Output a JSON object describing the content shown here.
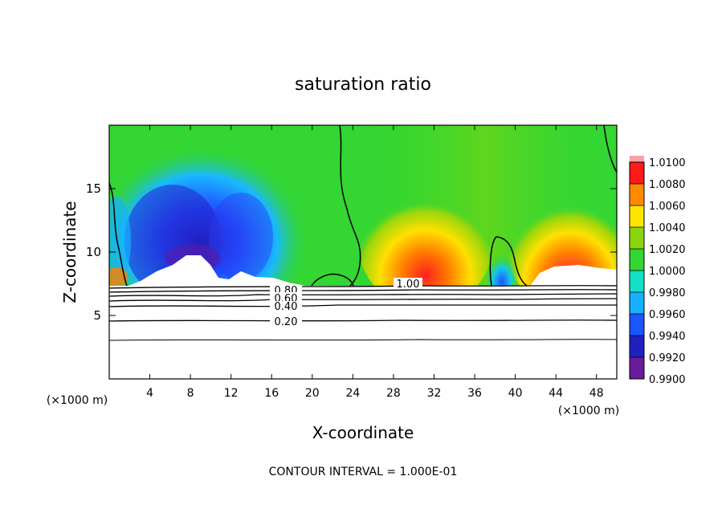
{
  "chart_data": {
    "type": "heatmap",
    "title": "saturation ratio",
    "xlabel": "X-coordinate",
    "ylabel": "Z-coordinate",
    "x_unit": "(×1000 m)",
    "x_unit_right": "(×1000 m)",
    "xlim": [
      0,
      50
    ],
    "ylim": [
      0,
      20
    ],
    "x_ticks": [
      4,
      8,
      12,
      16,
      20,
      24,
      28,
      32,
      36,
      40,
      44,
      48
    ],
    "y_ticks": [
      5,
      10,
      15
    ],
    "colorbar": {
      "levels": [
        "0.9900",
        "0.9920",
        "0.9940",
        "0.9960",
        "0.9980",
        "1.0000",
        "1.0020",
        "1.0040",
        "1.0060",
        "1.0080",
        "1.0100"
      ],
      "colors": [
        "#6a1b9a",
        "#2020c0",
        "#1a55ff",
        "#16b0ff",
        "#12e0c8",
        "#33d633",
        "#8ad60e",
        "#ffe600",
        "#ff8a00",
        "#ff1a1a",
        "#f7a0a8"
      ]
    },
    "contour_labels": [
      "1.00",
      "0.80",
      "0.60",
      "0.40",
      "0.20"
    ],
    "footer": "CONTOUR INTERVAL = 1.000E-01"
  }
}
